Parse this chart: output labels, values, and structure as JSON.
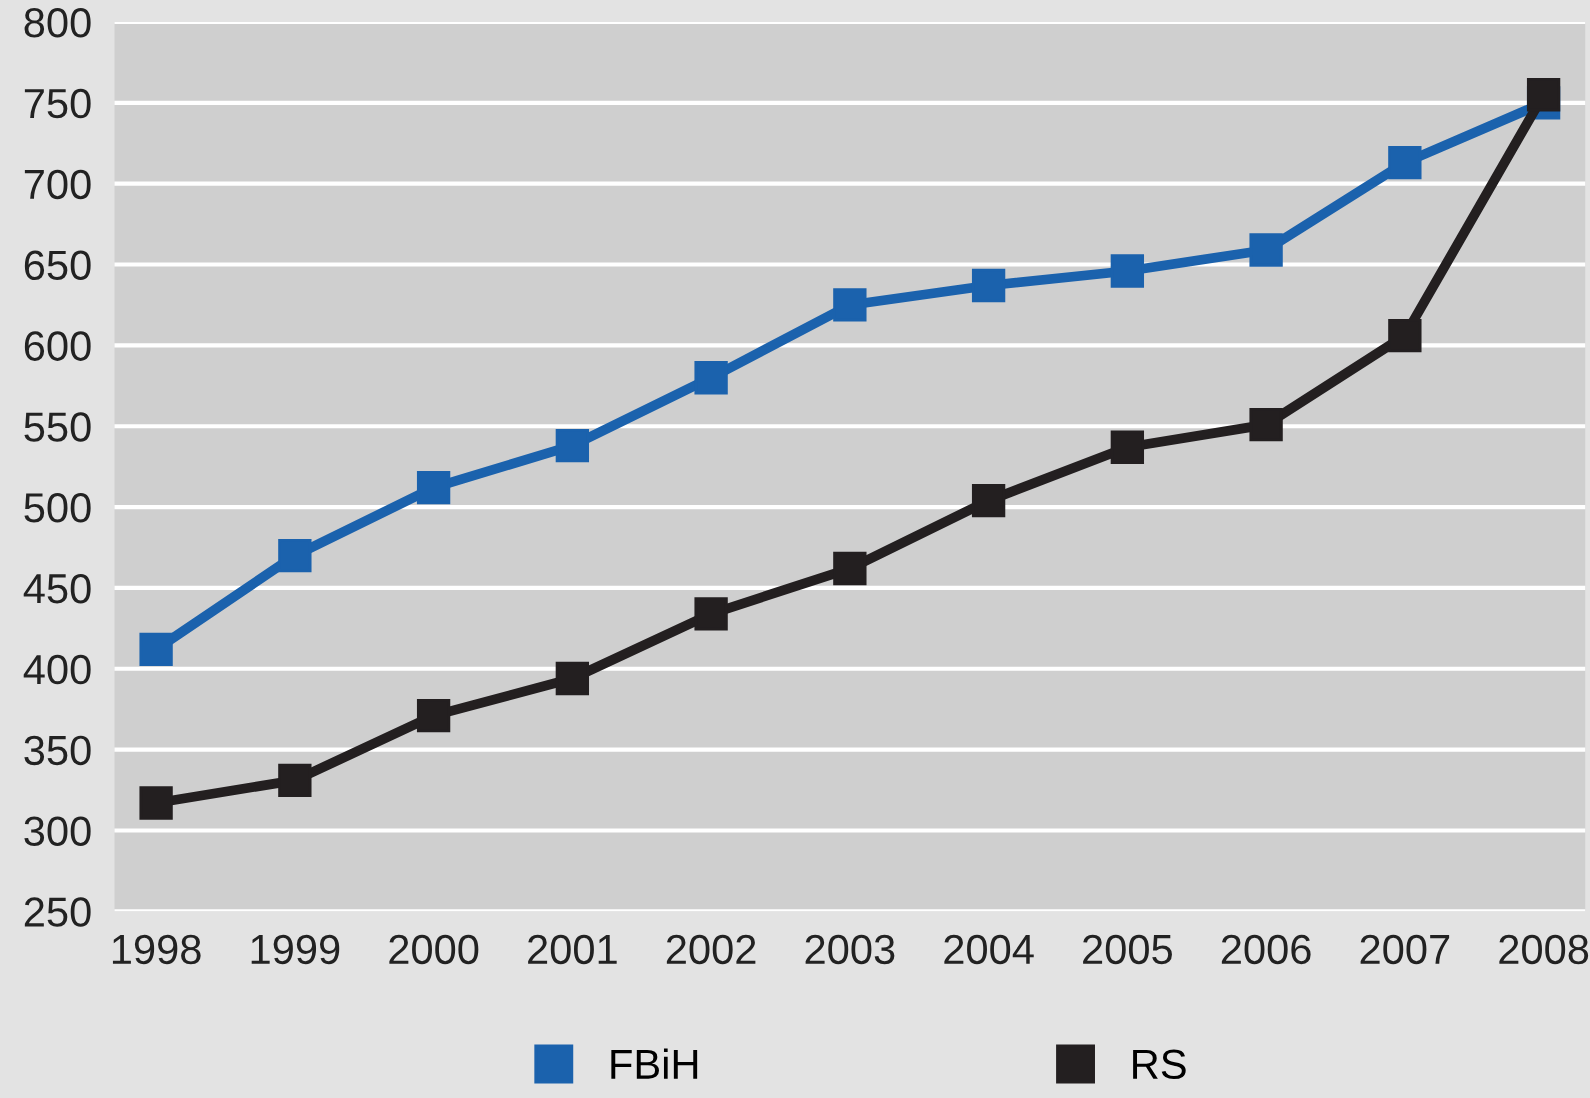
{
  "chart_data": {
    "type": "line",
    "categories": [
      "1998",
      "1999",
      "2000",
      "2001",
      "2002",
      "2003",
      "2004",
      "2005",
      "2006",
      "2007",
      "2008"
    ],
    "series": [
      {
        "name": "FBiH",
        "color": "#1b62ad",
        "values": [
          412,
          470,
          512,
          538,
          580,
          625,
          637,
          646,
          659,
          713,
          750
        ]
      },
      {
        "name": "RS",
        "color": "#231f20",
        "values": [
          317,
          331,
          371,
          394,
          434,
          462,
          504,
          537,
          551,
          606,
          755
        ]
      }
    ],
    "ylim": [
      250,
      800
    ],
    "yticks": [
      250,
      300,
      350,
      400,
      450,
      500,
      550,
      600,
      650,
      700,
      750,
      800
    ],
    "grid": "y",
    "legend": "bottom",
    "marker": "square",
    "line_style": "solid"
  }
}
